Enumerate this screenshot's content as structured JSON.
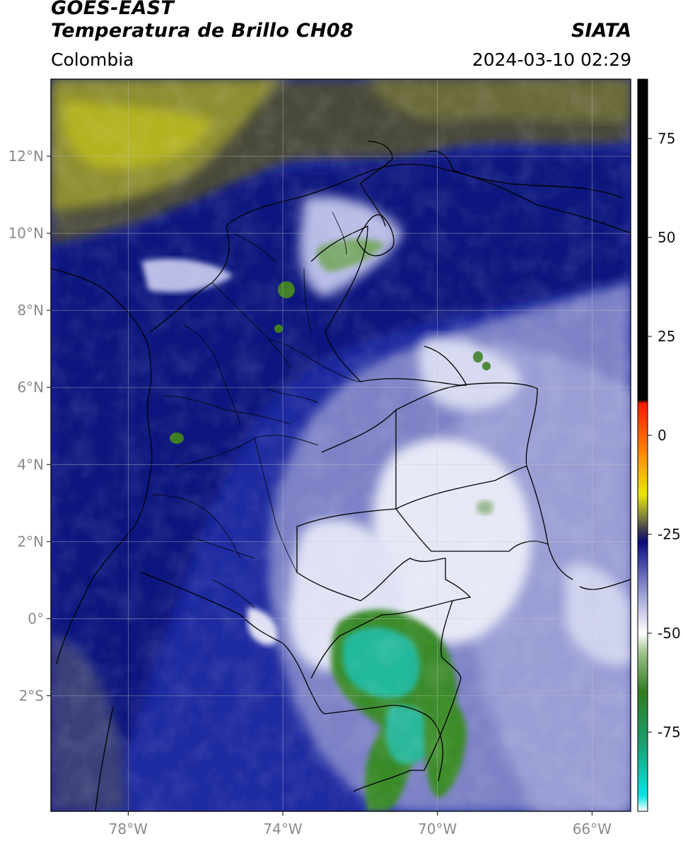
{
  "header": {
    "satellite": "GOES-EAST",
    "product": "Temperatura de Brillo CH08",
    "region": "Colombia",
    "agency": "SIATA",
    "timestamp": "2024-03-10 02:29"
  },
  "map": {
    "lon_range": [
      -80,
      -65
    ],
    "lat_range": [
      -5,
      14
    ],
    "lon_ticks": [
      {
        "value": -78,
        "label": "78°W"
      },
      {
        "value": -74,
        "label": "74°W"
      },
      {
        "value": -70,
        "label": "70°W"
      },
      {
        "value": -66,
        "label": "66°W"
      }
    ],
    "lat_ticks": [
      {
        "value": 12,
        "label": "12°N"
      },
      {
        "value": 10,
        "label": "10°N"
      },
      {
        "value": 8,
        "label": "8°N"
      },
      {
        "value": 6,
        "label": "6°N"
      },
      {
        "value": 4,
        "label": "4°N"
      },
      {
        "value": 2,
        "label": "2°N"
      },
      {
        "value": 0,
        "label": "0°"
      },
      {
        "value": -2,
        "label": "2°S"
      }
    ],
    "gridlines": true
  },
  "colorbar": {
    "range": [
      -95,
      90
    ],
    "ticks": [
      {
        "value": 75,
        "label": "75"
      },
      {
        "value": 50,
        "label": "50"
      },
      {
        "value": 25,
        "label": "25"
      },
      {
        "value": 0,
        "label": "0"
      },
      {
        "value": -25,
        "label": "-25"
      },
      {
        "value": -50,
        "label": "-50"
      },
      {
        "value": -75,
        "label": "-75"
      }
    ],
    "stops": [
      {
        "value": -95,
        "color": "#ffffff"
      },
      {
        "value": -91,
        "color": "#00e5e5"
      },
      {
        "value": -78,
        "color": "#1aa070"
      },
      {
        "value": -65,
        "color": "#2e7d1e"
      },
      {
        "value": -55,
        "color": "#9bc28a"
      },
      {
        "value": -50,
        "color": "#ffffff"
      },
      {
        "value": -40,
        "color": "#9a9fd6"
      },
      {
        "value": -30,
        "color": "#2a2f9a"
      },
      {
        "value": -27,
        "color": "#0a0a7a"
      },
      {
        "value": -24,
        "color": "#3a3a50"
      },
      {
        "value": -20,
        "color": "#8a8a3a"
      },
      {
        "value": -15,
        "color": "#e8e800"
      },
      {
        "value": -5,
        "color": "#ff8c00"
      },
      {
        "value": 8,
        "color": "#ff1a00"
      },
      {
        "value": 9,
        "color": "#000000"
      },
      {
        "value": 90,
        "color": "#000000"
      }
    ]
  }
}
